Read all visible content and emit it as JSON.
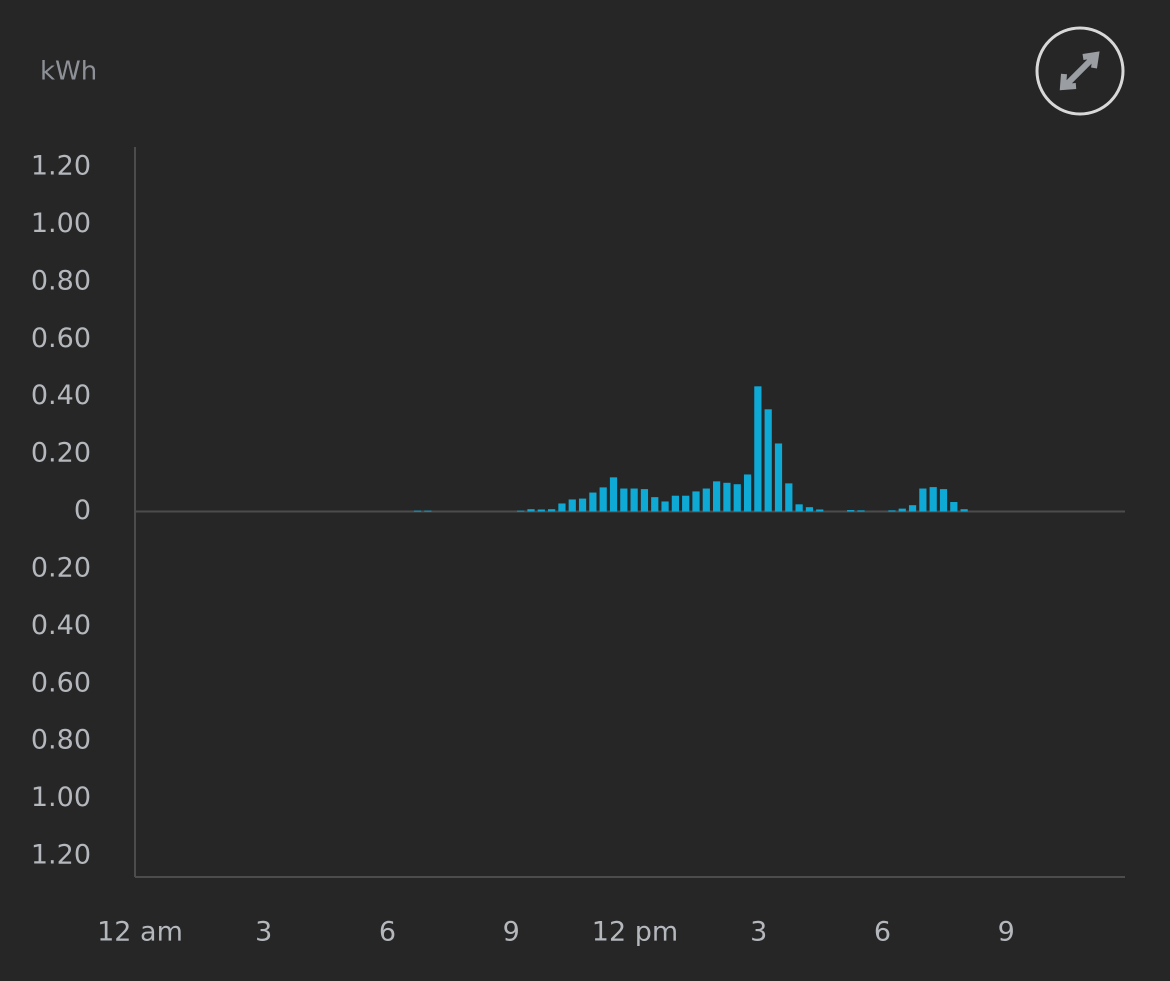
{
  "chart_data": {
    "type": "bar",
    "y_label": "kWh",
    "color": "#0fa9d6",
    "x": [
      6.75,
      7.0,
      9.25,
      9.5,
      9.75,
      10.0,
      10.25,
      10.5,
      10.75,
      11.0,
      11.25,
      11.5,
      11.75,
      12.0,
      12.25,
      12.5,
      12.75,
      13.0,
      13.25,
      13.5,
      13.75,
      14.0,
      14.25,
      14.5,
      14.75,
      15.0,
      15.25,
      15.5,
      15.75,
      16.0,
      16.25,
      16.5,
      17.25,
      17.5,
      18.25,
      18.5,
      18.75,
      19.0,
      19.25,
      19.5,
      19.75,
      20.0
    ],
    "values": [
      0.003,
      0.003,
      0.003,
      0.008,
      0.007,
      0.008,
      0.028,
      0.042,
      0.045,
      0.066,
      0.084,
      0.119,
      0.08,
      0.08,
      0.078,
      0.05,
      0.035,
      0.055,
      0.055,
      0.07,
      0.08,
      0.105,
      0.1,
      0.095,
      0.129,
      0.436,
      0.356,
      0.237,
      0.098,
      0.025,
      0.015,
      0.007,
      0.005,
      0.004,
      0.004,
      0.01,
      0.022,
      0.08,
      0.085,
      0.078,
      0.033,
      0.008
    ],
    "xlim": [
      0,
      24
    ],
    "xticks": [
      {
        "value": 0,
        "label": "12 am"
      },
      3,
      6,
      9,
      {
        "value": 12,
        "label": "12 pm"
      },
      {
        "value": 15,
        "label": "3"
      },
      {
        "value": 18,
        "label": "6"
      },
      {
        "value": 21,
        "label": "9"
      }
    ],
    "ylim": [
      -1.2,
      1.2
    ],
    "yticks": [
      {
        "value": 1.2,
        "label": "1.20"
      },
      {
        "value": 1.0,
        "label": "1.00"
      },
      {
        "value": 0.8,
        "label": "0.80"
      },
      {
        "value": 0.6,
        "label": "0.60"
      },
      {
        "value": 0.4,
        "label": "0.40"
      },
      {
        "value": 0.2,
        "label": "0.20"
      },
      0,
      {
        "value": -0.2,
        "label": "0.20"
      },
      {
        "value": -0.4,
        "label": "0.40"
      },
      {
        "value": -0.6,
        "label": "0.60"
      },
      {
        "value": -0.8,
        "label": "0.80"
      },
      {
        "value": -1.0,
        "label": "1.00"
      },
      {
        "value": -1.2,
        "label": "1.20"
      }
    ],
    "grid": false
  }
}
